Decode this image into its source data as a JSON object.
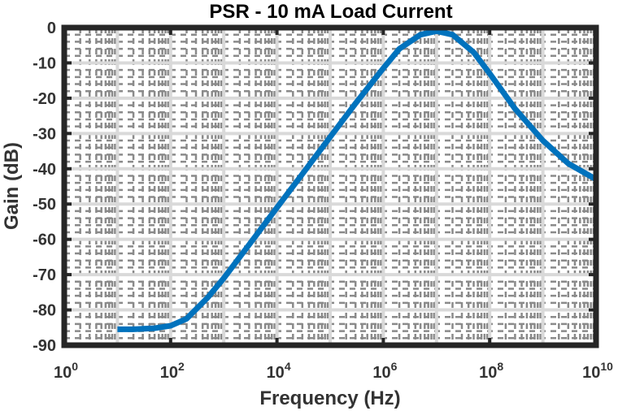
{
  "chart_data": {
    "type": "line",
    "title": "PSR - 10 mA Load Current",
    "xlabel": "Frequency (Hz)",
    "ylabel": "Gain (dB)",
    "x_scale": "log",
    "x_base": "10",
    "xlim": [
      1,
      10000000000
    ],
    "ylim": [
      -90,
      0
    ],
    "x_tick_exponents": [
      "0",
      "2",
      "4",
      "6",
      "8",
      "10"
    ],
    "y_ticks": [
      "0",
      "-10",
      "-20",
      "-30",
      "-40",
      "-50",
      "-60",
      "-70",
      "-80",
      "-90"
    ],
    "grid": "major and minor",
    "line_color": "#0072BD",
    "series": [
      {
        "x": [
          10,
          20,
          50,
          100,
          200,
          500,
          1000,
          3000,
          10000,
          30000,
          100000,
          300000,
          1000000,
          2000000,
          5000000,
          10000000,
          20000000,
          50000000,
          100000000,
          300000000,
          1000000000,
          3000000000,
          10000000000
        ],
        "y": [
          -85.5,
          -85.5,
          -85.2,
          -84.5,
          -82.5,
          -76.5,
          -71,
          -61.5,
          -51,
          -41.5,
          -31,
          -21.5,
          -11.5,
          -6,
          -2,
          -1,
          -2,
          -7,
          -13,
          -23,
          -32,
          -38.5,
          -43
        ]
      }
    ]
  }
}
